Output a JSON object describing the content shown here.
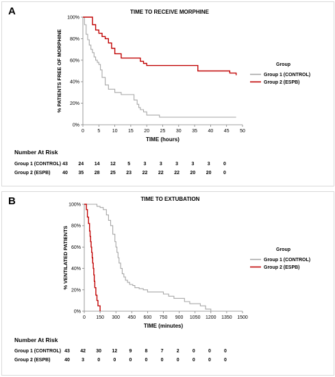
{
  "chart_data": [
    {
      "type": "line",
      "panel": "A",
      "title": "TIME TO RECEIVE MORPHINE",
      "xlabel": "TIME (hours)",
      "ylabel": "% PATIENTS FREE OF MORPHINE",
      "xlim": [
        0,
        50
      ],
      "ylim": [
        0,
        100
      ],
      "x_ticks": [
        "0",
        "5",
        "10",
        "15",
        "20",
        "25",
        "30",
        "35",
        "40",
        "45",
        "50"
      ],
      "y_ticks": [
        "0%",
        "20%",
        "40%",
        "60%",
        "80%",
        "100%"
      ],
      "legend": {
        "title": "Group",
        "position": "right"
      },
      "series": [
        {
          "name": "Group 1 (CONTROL)",
          "color": "#a6a6a6",
          "x": [
            0,
            0.5,
            1,
            1.5,
            2,
            2.5,
            3,
            3.5,
            4,
            4.5,
            5,
            5.5,
            6,
            7,
            8,
            10,
            12,
            14,
            16,
            17,
            17.5,
            18,
            19,
            20,
            22,
            24,
            48
          ],
          "y": [
            100,
            93,
            84,
            79,
            74,
            70,
            67,
            63,
            60,
            58,
            56,
            51,
            44,
            37,
            33,
            30,
            28,
            28,
            23,
            19,
            16,
            14,
            12,
            9,
            9,
            7,
            7
          ]
        },
        {
          "name": "Group 2 (ESPB)",
          "color": "#c00000",
          "x": [
            0,
            3,
            4,
            5,
            6,
            7,
            8,
            9,
            10,
            12,
            16,
            18,
            19,
            20,
            22,
            26,
            36,
            46,
            48
          ],
          "y": [
            100,
            93,
            88,
            85,
            82,
            80,
            76,
            71,
            66,
            62,
            62,
            59,
            57,
            55,
            55,
            55,
            50,
            48,
            46
          ]
        }
      ],
      "number_at_risk": {
        "title": "Number At Risk",
        "rows": [
          {
            "label": "Group 1 (CONTROL)",
            "values": [
              "43",
              "24",
              "14",
              "12",
              "5",
              "3",
              "3",
              "3",
              "3",
              "3",
              "0"
            ]
          },
          {
            "label": "Group 2 (ESPB)",
            "values": [
              "40",
              "35",
              "28",
              "25",
              "23",
              "22",
              "22",
              "22",
              "20",
              "20",
              "0"
            ]
          }
        ]
      }
    },
    {
      "type": "line",
      "panel": "B",
      "title": "TIME TO EXTUBATION",
      "xlabel": "TIME (minutes)",
      "ylabel": "% VENTILATED PATIENTS",
      "xlim": [
        0,
        1500
      ],
      "ylim": [
        0,
        100
      ],
      "x_ticks": [
        "0",
        "150",
        "300",
        "450",
        "600",
        "750",
        "900",
        "1050",
        "1200",
        "1350",
        "1500"
      ],
      "y_ticks": [
        "0%",
        "20%",
        "40%",
        "60%",
        "80%",
        "100%"
      ],
      "legend": {
        "title": "Group",
        "position": "right"
      },
      "series": [
        {
          "name": "Group 1 (CONTROL)",
          "color": "#a6a6a6",
          "x": [
            0,
            90,
            120,
            150,
            180,
            210,
            230,
            250,
            270,
            290,
            300,
            310,
            320,
            330,
            345,
            360,
            375,
            390,
            410,
            430,
            460,
            480,
            520,
            560,
            600,
            750,
            800,
            850,
            950,
            1000,
            1100,
            1150,
            1200
          ],
          "y": [
            100,
            100,
            98,
            97,
            95,
            90,
            85,
            80,
            72,
            65,
            60,
            55,
            50,
            45,
            40,
            35,
            32,
            29,
            27,
            25,
            24,
            22,
            21,
            20,
            18,
            16,
            14,
            12,
            9,
            7,
            5,
            2,
            0
          ]
        },
        {
          "name": "Group 2 (ESPB)",
          "color": "#c00000",
          "x": [
            0,
            20,
            30,
            40,
            50,
            55,
            60,
            65,
            70,
            75,
            80,
            85,
            90,
            95,
            100,
            110,
            120,
            130,
            150
          ],
          "y": [
            100,
            95,
            88,
            82,
            75,
            70,
            65,
            60,
            55,
            50,
            45,
            40,
            34,
            28,
            22,
            15,
            10,
            5,
            0
          ]
        }
      ],
      "number_at_risk": {
        "title": "Number At Risk",
        "rows": [
          {
            "label": "Group 1 (CONTROL)",
            "values": [
              "43",
              "42",
              "30",
              "12",
              "9",
              "8",
              "7",
              "2",
              "0",
              "0",
              "0"
            ]
          },
          {
            "label": "Group 2 (ESPB)",
            "values": [
              "40",
              "3",
              "0",
              "0",
              "0",
              "0",
              "0",
              "0",
              "0",
              "0",
              "0"
            ]
          }
        ]
      }
    }
  ]
}
